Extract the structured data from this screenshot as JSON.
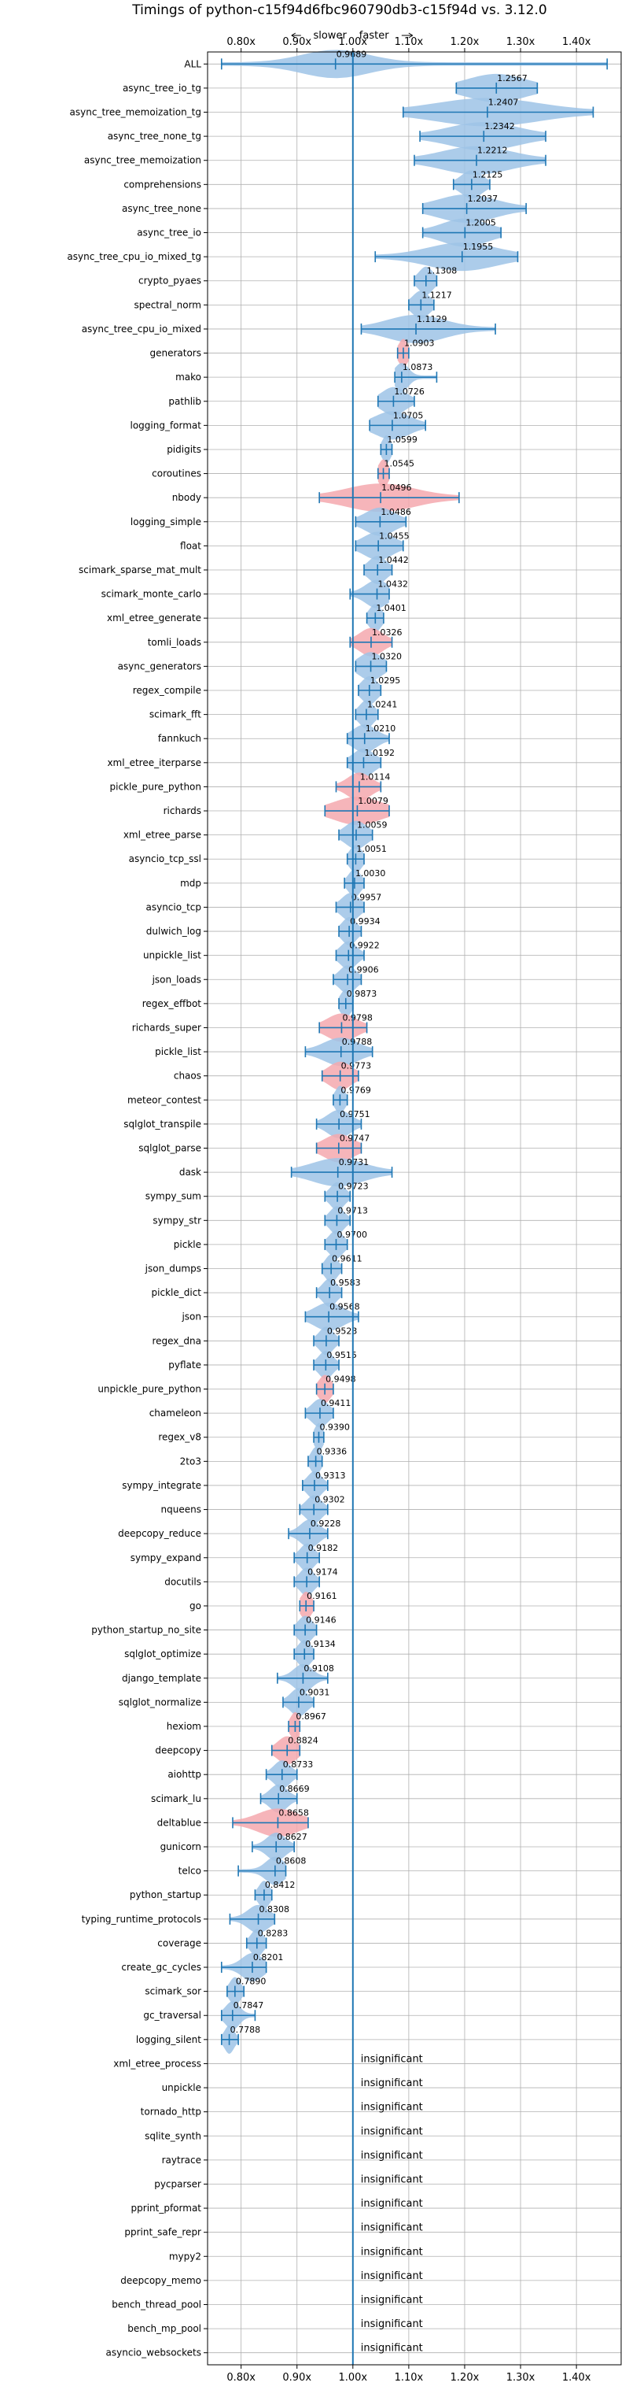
{
  "chart_data": {
    "type": "violin",
    "title": "Timings of python-c15f94d6fbc960790db3-c15f94d vs. 3.12.0",
    "direction_labels": {
      "slower": "slower",
      "faster": "faster"
    },
    "xlim": [
      0.74,
      1.48
    ],
    "xticks": [
      0.8,
      0.9,
      1.0,
      1.1,
      1.2,
      1.3,
      1.4
    ],
    "xtick_labels": [
      "0.80x",
      "0.90x",
      "1.00x",
      "1.10x",
      "1.20x",
      "1.30x",
      "1.40x"
    ],
    "reference_line": 1.0,
    "insignificant_label": "insignificant",
    "benchmarks": [
      {
        "name": "ALL",
        "mean": 0.9689,
        "min": 0.765,
        "max": 1.455,
        "spread": 0.06,
        "color": "blue"
      },
      {
        "name": "async_tree_io_tg",
        "mean": 1.2567,
        "min": 1.185,
        "max": 1.33,
        "spread": 0.05,
        "color": "blue"
      },
      {
        "name": "async_tree_memoization_tg",
        "mean": 1.2407,
        "min": 1.09,
        "max": 1.43,
        "spread": 0.09,
        "color": "blue"
      },
      {
        "name": "async_tree_none_tg",
        "mean": 1.2342,
        "min": 1.12,
        "max": 1.345,
        "spread": 0.06,
        "color": "blue"
      },
      {
        "name": "async_tree_memoization",
        "mean": 1.2212,
        "min": 1.11,
        "max": 1.345,
        "spread": 0.06,
        "color": "blue"
      },
      {
        "name": "comprehensions",
        "mean": 1.2125,
        "min": 1.18,
        "max": 1.245,
        "spread": 0.018,
        "color": "blue"
      },
      {
        "name": "async_tree_none",
        "mean": 1.2037,
        "min": 1.125,
        "max": 1.31,
        "spread": 0.05,
        "color": "blue"
      },
      {
        "name": "async_tree_io",
        "mean": 1.2005,
        "min": 1.125,
        "max": 1.265,
        "spread": 0.04,
        "color": "blue"
      },
      {
        "name": "async_tree_cpu_io_mixed_tg",
        "mean": 1.1955,
        "min": 1.04,
        "max": 1.295,
        "spread": 0.06,
        "color": "blue"
      },
      {
        "name": "crypto_pyaes",
        "mean": 1.1308,
        "min": 1.11,
        "max": 1.15,
        "spread": 0.012,
        "color": "blue"
      },
      {
        "name": "spectral_norm",
        "mean": 1.1217,
        "min": 1.1,
        "max": 1.145,
        "spread": 0.014,
        "color": "blue"
      },
      {
        "name": "async_tree_cpu_io_mixed",
        "mean": 1.1129,
        "min": 1.015,
        "max": 1.255,
        "spread": 0.05,
        "color": "blue"
      },
      {
        "name": "generators",
        "mean": 1.0903,
        "min": 1.08,
        "max": 1.1,
        "spread": 0.008,
        "color": "red"
      },
      {
        "name": "mako",
        "mean": 1.0873,
        "min": 1.075,
        "max": 1.15,
        "spread": 0.012,
        "color": "blue"
      },
      {
        "name": "pathlib",
        "mean": 1.0726,
        "min": 1.045,
        "max": 1.11,
        "spread": 0.02,
        "color": "blue"
      },
      {
        "name": "logging_format",
        "mean": 1.0705,
        "min": 1.03,
        "max": 1.13,
        "spread": 0.03,
        "color": "blue"
      },
      {
        "name": "pidigits",
        "mean": 1.0599,
        "min": 1.05,
        "max": 1.07,
        "spread": 0.007,
        "color": "blue"
      },
      {
        "name": "coroutines",
        "mean": 1.0545,
        "min": 1.045,
        "max": 1.065,
        "spread": 0.008,
        "color": "red"
      },
      {
        "name": "nbody",
        "mean": 1.0496,
        "min": 0.94,
        "max": 1.19,
        "spread": 0.06,
        "color": "red"
      },
      {
        "name": "logging_simple",
        "mean": 1.0486,
        "min": 1.005,
        "max": 1.095,
        "spread": 0.025,
        "color": "blue"
      },
      {
        "name": "float",
        "mean": 1.0455,
        "min": 1.005,
        "max": 1.09,
        "spread": 0.025,
        "color": "blue"
      },
      {
        "name": "scimark_sparse_mat_mult",
        "mean": 1.0442,
        "min": 1.02,
        "max": 1.07,
        "spread": 0.015,
        "color": "blue"
      },
      {
        "name": "scimark_monte_carlo",
        "mean": 1.0432,
        "min": 0.995,
        "max": 1.065,
        "spread": 0.02,
        "color": "blue"
      },
      {
        "name": "xml_etree_generate",
        "mean": 1.0401,
        "min": 1.025,
        "max": 1.055,
        "spread": 0.01,
        "color": "blue"
      },
      {
        "name": "tomli_loads",
        "mean": 1.0326,
        "min": 0.995,
        "max": 1.07,
        "spread": 0.02,
        "color": "red"
      },
      {
        "name": "async_generators",
        "mean": 1.032,
        "min": 1.005,
        "max": 1.06,
        "spread": 0.02,
        "color": "blue"
      },
      {
        "name": "regex_compile",
        "mean": 1.0295,
        "min": 1.01,
        "max": 1.05,
        "spread": 0.013,
        "color": "blue"
      },
      {
        "name": "scimark_fft",
        "mean": 1.0241,
        "min": 1.005,
        "max": 1.045,
        "spread": 0.012,
        "color": "blue"
      },
      {
        "name": "fannkuch",
        "mean": 1.021,
        "min": 0.99,
        "max": 1.065,
        "spread": 0.02,
        "color": "blue"
      },
      {
        "name": "xml_etree_iterparse",
        "mean": 1.0192,
        "min": 0.99,
        "max": 1.05,
        "spread": 0.018,
        "color": "blue"
      },
      {
        "name": "pickle_pure_python",
        "mean": 1.0114,
        "min": 0.97,
        "max": 1.05,
        "spread": 0.02,
        "color": "red"
      },
      {
        "name": "richards",
        "mean": 1.0079,
        "min": 0.95,
        "max": 1.065,
        "spread": 0.04,
        "color": "red"
      },
      {
        "name": "xml_etree_parse",
        "mean": 1.0059,
        "min": 0.975,
        "max": 1.035,
        "spread": 0.018,
        "color": "blue"
      },
      {
        "name": "asyncio_tcp_ssl",
        "mean": 1.0051,
        "min": 0.99,
        "max": 1.02,
        "spread": 0.01,
        "color": "blue"
      },
      {
        "name": "mdp",
        "mean": 1.003,
        "min": 0.985,
        "max": 1.02,
        "spread": 0.01,
        "color": "blue"
      },
      {
        "name": "asyncio_tcp",
        "mean": 0.9957,
        "min": 0.97,
        "max": 1.02,
        "spread": 0.015,
        "color": "blue"
      },
      {
        "name": "dulwich_log",
        "mean": 0.9934,
        "min": 0.975,
        "max": 1.015,
        "spread": 0.012,
        "color": "blue"
      },
      {
        "name": "unpickle_list",
        "mean": 0.9922,
        "min": 0.97,
        "max": 1.02,
        "spread": 0.014,
        "color": "blue"
      },
      {
        "name": "json_loads",
        "mean": 0.9906,
        "min": 0.965,
        "max": 1.015,
        "spread": 0.014,
        "color": "blue"
      },
      {
        "name": "regex_effbot",
        "mean": 0.9873,
        "min": 0.975,
        "max": 1.0,
        "spread": 0.009,
        "color": "blue"
      },
      {
        "name": "richards_super",
        "mean": 0.9798,
        "min": 0.94,
        "max": 1.025,
        "spread": 0.025,
        "color": "red"
      },
      {
        "name": "pickle_list",
        "mean": 0.9788,
        "min": 0.915,
        "max": 1.035,
        "spread": 0.03,
        "color": "blue"
      },
      {
        "name": "chaos",
        "mean": 0.9773,
        "min": 0.945,
        "max": 1.01,
        "spread": 0.02,
        "color": "red"
      },
      {
        "name": "meteor_contest",
        "mean": 0.9769,
        "min": 0.965,
        "max": 0.99,
        "spread": 0.008,
        "color": "blue"
      },
      {
        "name": "sqlglot_transpile",
        "mean": 0.9751,
        "min": 0.935,
        "max": 1.015,
        "spread": 0.02,
        "color": "blue"
      },
      {
        "name": "sqlglot_parse",
        "mean": 0.9747,
        "min": 0.935,
        "max": 1.015,
        "spread": 0.025,
        "color": "red"
      },
      {
        "name": "dask",
        "mean": 0.9731,
        "min": 0.89,
        "max": 1.07,
        "spread": 0.045,
        "color": "blue"
      },
      {
        "name": "sympy_sum",
        "mean": 0.9723,
        "min": 0.95,
        "max": 0.995,
        "spread": 0.012,
        "color": "blue"
      },
      {
        "name": "sympy_str",
        "mean": 0.9713,
        "min": 0.95,
        "max": 0.995,
        "spread": 0.012,
        "color": "blue"
      },
      {
        "name": "pickle",
        "mean": 0.97,
        "min": 0.95,
        "max": 0.99,
        "spread": 0.012,
        "color": "blue"
      },
      {
        "name": "json_dumps",
        "mean": 0.9611,
        "min": 0.945,
        "max": 0.98,
        "spread": 0.01,
        "color": "blue"
      },
      {
        "name": "pickle_dict",
        "mean": 0.9583,
        "min": 0.935,
        "max": 0.98,
        "spread": 0.012,
        "color": "blue"
      },
      {
        "name": "json",
        "mean": 0.9568,
        "min": 0.915,
        "max": 1.01,
        "spread": 0.025,
        "color": "blue"
      },
      {
        "name": "regex_dna",
        "mean": 0.9523,
        "min": 0.93,
        "max": 0.975,
        "spread": 0.012,
        "color": "blue"
      },
      {
        "name": "pyflate",
        "mean": 0.9515,
        "min": 0.93,
        "max": 0.975,
        "spread": 0.012,
        "color": "blue"
      },
      {
        "name": "unpickle_pure_python",
        "mean": 0.9498,
        "min": 0.935,
        "max": 0.965,
        "spread": 0.01,
        "color": "red"
      },
      {
        "name": "chameleon",
        "mean": 0.9411,
        "min": 0.915,
        "max": 0.965,
        "spread": 0.014,
        "color": "blue"
      },
      {
        "name": "regex_v8",
        "mean": 0.939,
        "min": 0.93,
        "max": 0.948,
        "spread": 0.007,
        "color": "blue"
      },
      {
        "name": "2to3",
        "mean": 0.9336,
        "min": 0.92,
        "max": 0.945,
        "spread": 0.008,
        "color": "blue"
      },
      {
        "name": "sympy_integrate",
        "mean": 0.9313,
        "min": 0.91,
        "max": 0.955,
        "spread": 0.012,
        "color": "blue"
      },
      {
        "name": "nqueens",
        "mean": 0.9302,
        "min": 0.905,
        "max": 0.955,
        "spread": 0.013,
        "color": "blue"
      },
      {
        "name": "deepcopy_reduce",
        "mean": 0.9228,
        "min": 0.885,
        "max": 0.955,
        "spread": 0.016,
        "color": "blue"
      },
      {
        "name": "sympy_expand",
        "mean": 0.9182,
        "min": 0.895,
        "max": 0.94,
        "spread": 0.012,
        "color": "blue"
      },
      {
        "name": "docutils",
        "mean": 0.9174,
        "min": 0.895,
        "max": 0.94,
        "spread": 0.012,
        "color": "blue"
      },
      {
        "name": "go",
        "mean": 0.9161,
        "min": 0.905,
        "max": 0.93,
        "spread": 0.009,
        "color": "red"
      },
      {
        "name": "python_startup_no_site",
        "mean": 0.9146,
        "min": 0.895,
        "max": 0.935,
        "spread": 0.012,
        "color": "blue"
      },
      {
        "name": "sqlglot_optimize",
        "mean": 0.9134,
        "min": 0.895,
        "max": 0.93,
        "spread": 0.011,
        "color": "blue"
      },
      {
        "name": "django_template",
        "mean": 0.9108,
        "min": 0.865,
        "max": 0.955,
        "spread": 0.016,
        "color": "blue"
      },
      {
        "name": "sqlglot_normalize",
        "mean": 0.9031,
        "min": 0.875,
        "max": 0.93,
        "spread": 0.014,
        "color": "blue"
      },
      {
        "name": "hexiom",
        "mean": 0.8967,
        "min": 0.885,
        "max": 0.905,
        "spread": 0.008,
        "color": "red"
      },
      {
        "name": "deepcopy",
        "mean": 0.8824,
        "min": 0.855,
        "max": 0.905,
        "spread": 0.016,
        "color": "red"
      },
      {
        "name": "aiohttp",
        "mean": 0.8733,
        "min": 0.845,
        "max": 0.9,
        "spread": 0.014,
        "color": "blue"
      },
      {
        "name": "scimark_lu",
        "mean": 0.8669,
        "min": 0.835,
        "max": 0.9,
        "spread": 0.015,
        "color": "blue"
      },
      {
        "name": "deltablue",
        "mean": 0.8658,
        "min": 0.785,
        "max": 0.92,
        "spread": 0.035,
        "color": "red"
      },
      {
        "name": "gunicorn",
        "mean": 0.8627,
        "min": 0.82,
        "max": 0.895,
        "spread": 0.016,
        "color": "blue"
      },
      {
        "name": "telco",
        "mean": 0.8608,
        "min": 0.795,
        "max": 0.88,
        "spread": 0.016,
        "color": "blue"
      },
      {
        "name": "python_startup",
        "mean": 0.8412,
        "min": 0.825,
        "max": 0.855,
        "spread": 0.009,
        "color": "blue"
      },
      {
        "name": "typing_runtime_protocols",
        "mean": 0.8308,
        "min": 0.78,
        "max": 0.86,
        "spread": 0.018,
        "color": "blue"
      },
      {
        "name": "coverage",
        "mean": 0.8283,
        "min": 0.81,
        "max": 0.845,
        "spread": 0.01,
        "color": "blue"
      },
      {
        "name": "create_gc_cycles",
        "mean": 0.8201,
        "min": 0.765,
        "max": 0.845,
        "spread": 0.018,
        "color": "blue"
      },
      {
        "name": "scimark_sor",
        "mean": 0.789,
        "min": 0.775,
        "max": 0.805,
        "spread": 0.009,
        "color": "blue"
      },
      {
        "name": "gc_traversal",
        "mean": 0.7847,
        "min": 0.765,
        "max": 0.825,
        "spread": 0.012,
        "color": "blue"
      },
      {
        "name": "logging_silent",
        "mean": 0.7788,
        "min": 0.765,
        "max": 0.795,
        "spread": 0.008,
        "color": "blue"
      },
      {
        "name": "xml_etree_process",
        "insignificant": true
      },
      {
        "name": "unpickle",
        "insignificant": true
      },
      {
        "name": "tornado_http",
        "insignificant": true
      },
      {
        "name": "sqlite_synth",
        "insignificant": true
      },
      {
        "name": "raytrace",
        "insignificant": true
      },
      {
        "name": "pycparser",
        "insignificant": true
      },
      {
        "name": "pprint_pformat",
        "insignificant": true
      },
      {
        "name": "pprint_safe_repr",
        "insignificant": true
      },
      {
        "name": "mypy2",
        "insignificant": true
      },
      {
        "name": "deepcopy_memo",
        "insignificant": true
      },
      {
        "name": "bench_thread_pool",
        "insignificant": true
      },
      {
        "name": "bench_mp_pool",
        "insignificant": true
      },
      {
        "name": "asyncio_websockets",
        "insignificant": true
      }
    ],
    "colors": {
      "blue_fill": "#9ec3e6",
      "red_fill": "#f4a8ae",
      "stat_line": "#1f77b4",
      "grid": "#b0b0b0"
    },
    "grid": true
  }
}
